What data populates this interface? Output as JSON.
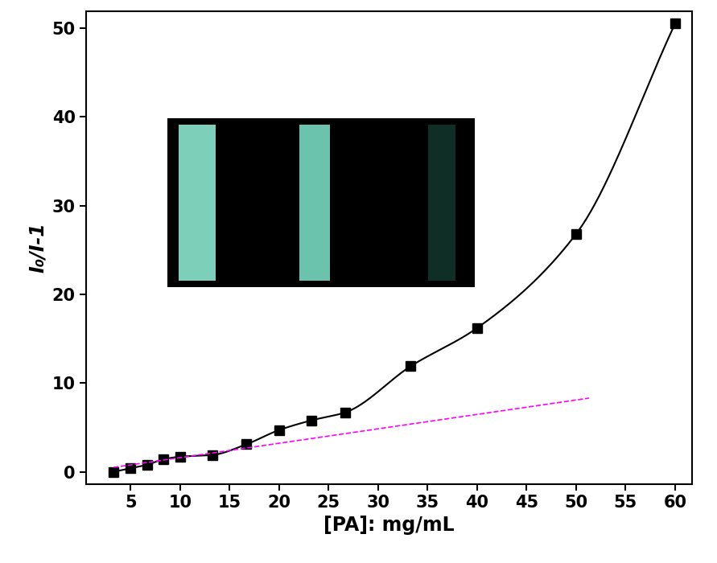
{
  "chart_data": {
    "type": "line",
    "x_label": "[PA]: mg/mL",
    "y_label": "I₀/I-1",
    "series": [
      {
        "color": "#000000",
        "marker": "square",
        "line_style": "solid",
        "x": [
          3.3,
          5,
          6.7,
          8.3,
          10,
          13.3,
          16.7,
          20,
          23.3,
          26.7,
          33.3,
          40,
          50,
          60
        ],
        "values": [
          0.0,
          0.4,
          0.8,
          1.4,
          1.7,
          1.9,
          3.1,
          4.7,
          5.8,
          6.7,
          11.9,
          16.2,
          26.8,
          50.5
        ]
      },
      {
        "color": "#ff00ff",
        "marker": "none",
        "line_style": "dashed",
        "x": [
          3.3,
          51.3
        ],
        "values": [
          0.5,
          8.3
        ]
      }
    ],
    "xlim": [
      0.5,
      61.7
    ],
    "ylim": [
      -1.4,
      51.9
    ],
    "xticks": [
      5,
      10,
      15,
      20,
      25,
      30,
      35,
      40,
      45,
      50,
      55,
      60
    ],
    "yticks": [
      0,
      10,
      20,
      30,
      40,
      50
    ],
    "grid": false
  }
}
